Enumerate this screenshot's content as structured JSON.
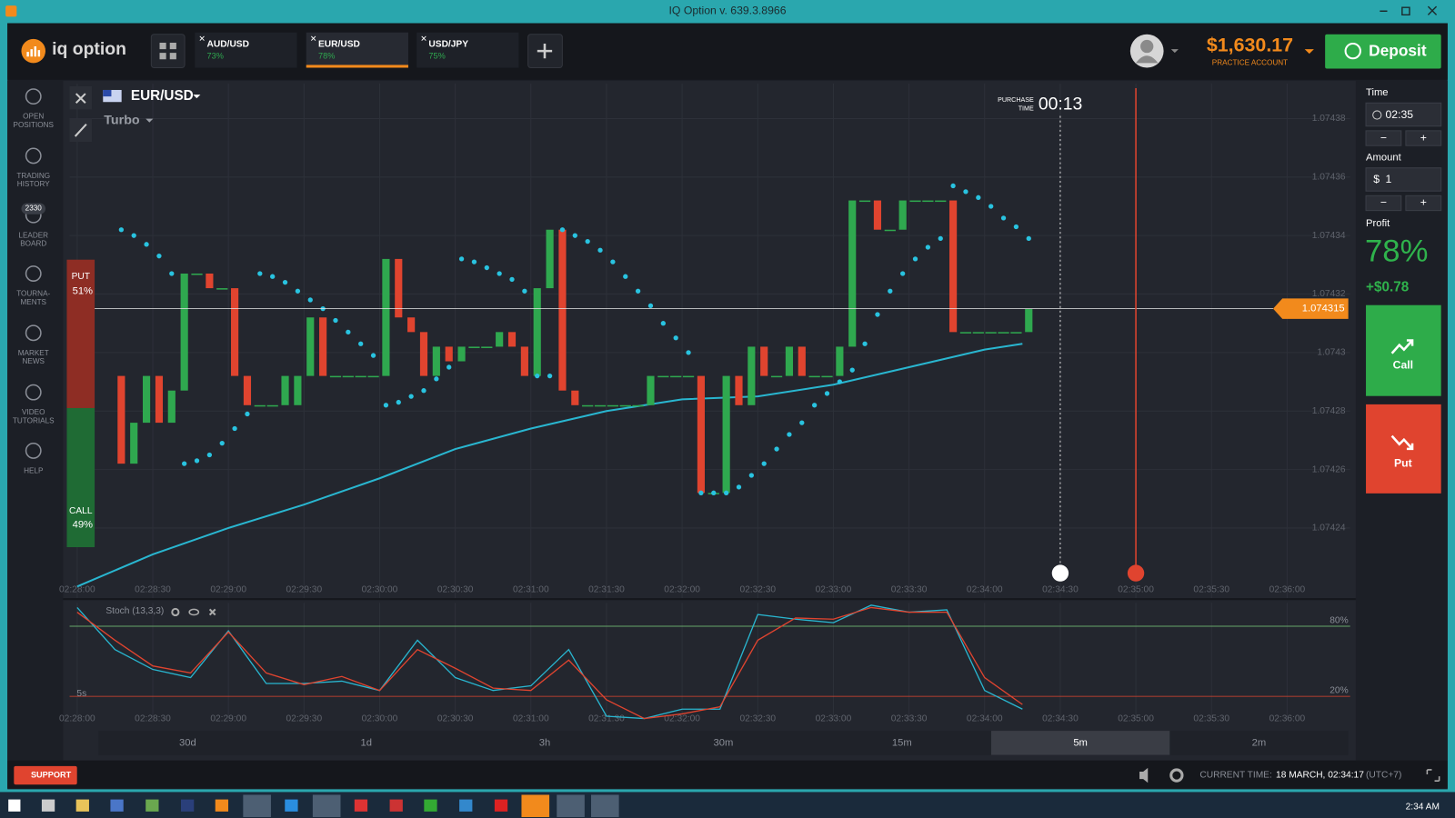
{
  "window": {
    "title": "IQ Option v. 639.3.8966"
  },
  "header": {
    "logo": "iq option",
    "tabs": [
      {
        "pair": "AUD/USD",
        "profit": "73%"
      },
      {
        "pair": "EUR/USD",
        "profit": "78%"
      },
      {
        "pair": "USD/JPY",
        "profit": "75%"
      }
    ],
    "balance": "$1,630.17",
    "account": "PRACTICE ACCOUNT",
    "deposit": "Deposit"
  },
  "sidebar": {
    "items": [
      [
        "OPEN",
        "POSITIONS"
      ],
      [
        "TRADING",
        "HISTORY"
      ],
      [
        "LEADER",
        "BOARD"
      ],
      [
        "TOURNA-",
        "MENTS"
      ],
      [
        "MARKET",
        "NEWS"
      ],
      [
        "VIDEO",
        "TUTORIALS"
      ],
      [
        "HELP"
      ]
    ],
    "badge": "2330"
  },
  "asset": {
    "pair": "EUR/USD",
    "mode": "Turbo",
    "purchase_label": [
      "PURCHASE",
      "TIME"
    ],
    "timer": "00:13"
  },
  "sentiment": {
    "put": "PUT",
    "put_pct": "51%",
    "call": "CALL",
    "call_pct": "49%"
  },
  "trade_panel": {
    "time_label": "Time",
    "time": "02:35",
    "minus": "−",
    "plus": "+",
    "amount_label": "Amount",
    "currency": "$",
    "amount": "1",
    "profit_label": "Profit",
    "profit_pct": "78%",
    "profit": "+$0.78",
    "call": "Call",
    "put": "Put"
  },
  "timeframes": {
    "items": [
      "30d",
      "1d",
      "3h",
      "30m",
      "15m",
      "5m",
      "2m"
    ],
    "selected": "5m",
    "interval": "5s"
  },
  "footer": {
    "support": "SUPPORT",
    "time_label": "CURRENT TIME:",
    "time": "18 MARCH, 02:34:17",
    "zone": "(UTC+7)"
  },
  "taskbar": {
    "clock": "2:34 AM"
  },
  "chart_data": [
    {
      "type": "candlestick",
      "xlim": [
        "02:27:57",
        "02:36:25"
      ],
      "xticks": [
        "02:28:00",
        "02:28:30",
        "02:29:00",
        "02:29:30",
        "02:30:00",
        "02:30:30",
        "02:31:00",
        "02:31:30",
        "02:32:00",
        "02:32:30",
        "02:33:00",
        "02:33:30",
        "02:34:00",
        "02:34:30",
        "02:35:00",
        "02:35:30",
        "02:36:00"
      ],
      "ylim": [
        1.074216,
        1.074392
      ],
      "yticks": [
        1.07424,
        1.07426,
        1.07428,
        1.0743,
        1.07432,
        1.07434,
        1.07436,
        1.07438
      ],
      "grid": true,
      "up_color": "#2fa84f",
      "down_color": "#e0442f",
      "x": [
        "02:28:15",
        "02:28:20",
        "02:28:25",
        "02:28:30",
        "02:28:35",
        "02:28:40",
        "02:28:45",
        "02:28:50",
        "02:28:55",
        "02:29:00",
        "02:29:05",
        "02:29:10",
        "02:29:15",
        "02:29:20",
        "02:29:25",
        "02:29:30",
        "02:29:35",
        "02:29:40",
        "02:29:45",
        "02:29:50",
        "02:29:55",
        "02:30:00",
        "02:30:05",
        "02:30:10",
        "02:30:15",
        "02:30:20",
        "02:30:25",
        "02:30:30",
        "02:30:35",
        "02:30:40",
        "02:30:45",
        "02:30:50",
        "02:30:55",
        "02:31:00",
        "02:31:05",
        "02:31:10",
        "02:31:15",
        "02:31:20",
        "02:31:25",
        "02:31:30",
        "02:31:35",
        "02:31:40",
        "02:31:45",
        "02:31:50",
        "02:31:55",
        "02:32:00",
        "02:32:05",
        "02:32:10",
        "02:32:15",
        "02:32:20",
        "02:32:25",
        "02:32:30",
        "02:32:35",
        "02:32:40",
        "02:32:45",
        "02:32:50",
        "02:32:55",
        "02:33:00",
        "02:33:05",
        "02:33:10",
        "02:33:15",
        "02:33:20",
        "02:33:25",
        "02:33:30",
        "02:33:35",
        "02:33:40",
        "02:33:45",
        "02:33:50",
        "02:33:55",
        "02:34:00",
        "02:34:05",
        "02:34:10",
        "02:34:15"
      ],
      "open": [
        1.074292,
        1.074262,
        1.074276,
        1.074292,
        1.074276,
        1.074287,
        1.074327,
        1.074327,
        1.074322,
        1.074322,
        1.074292,
        1.074282,
        1.074282,
        1.074282,
        1.074282,
        1.074292,
        1.074312,
        1.074292,
        1.074292,
        1.074292,
        1.074292,
        1.074292,
        1.074332,
        1.074312,
        1.074307,
        1.074292,
        1.074302,
        1.074297,
        1.074302,
        1.074302,
        1.074302,
        1.074307,
        1.074302,
        1.074292,
        1.074322,
        1.074342,
        1.074287,
        1.074282,
        1.074282,
        1.074282,
        1.074282,
        1.074282,
        1.074282,
        1.074292,
        1.074292,
        1.074292,
        1.074292,
        1.074252,
        1.074252,
        1.074292,
        1.074282,
        1.074302,
        1.074292,
        1.074292,
        1.074302,
        1.074292,
        1.074292,
        1.074292,
        1.074302,
        1.074352,
        1.074352,
        1.074342,
        1.074342,
        1.074352,
        1.074352,
        1.074352,
        1.074352,
        1.074307,
        1.074307,
        1.074307,
        1.074307,
        1.074307,
        1.074307
      ],
      "close": [
        1.074262,
        1.074276,
        1.074292,
        1.074276,
        1.074287,
        1.074327,
        1.074327,
        1.074322,
        1.074322,
        1.074292,
        1.074282,
        1.074282,
        1.074282,
        1.074292,
        1.074292,
        1.074312,
        1.074292,
        1.074292,
        1.074292,
        1.074292,
        1.074292,
        1.074332,
        1.074312,
        1.074307,
        1.074292,
        1.074302,
        1.074297,
        1.074302,
        1.074302,
        1.074302,
        1.074307,
        1.074302,
        1.074292,
        1.074322,
        1.074342,
        1.074287,
        1.074282,
        1.074282,
        1.074282,
        1.074282,
        1.074282,
        1.074282,
        1.074292,
        1.074292,
        1.074292,
        1.074292,
        1.074252,
        1.074252,
        1.074292,
        1.074282,
        1.074302,
        1.074292,
        1.074292,
        1.074302,
        1.074292,
        1.074292,
        1.074292,
        1.074302,
        1.074352,
        1.074352,
        1.074342,
        1.074342,
        1.074352,
        1.074352,
        1.074352,
        1.074352,
        1.074307,
        1.074307,
        1.074307,
        1.074307,
        1.074307,
        1.074307,
        1.074315
      ],
      "sar": {
        "color": "#29c3e0",
        "values": [
          1.074342,
          1.07434,
          1.074337,
          1.074333,
          1.074327,
          1.074262,
          1.074263,
          1.074265,
          1.074269,
          1.074274,
          1.074279,
          1.074327,
          1.074326,
          1.074324,
          1.074321,
          1.074318,
          1.074315,
          1.074311,
          1.074307,
          1.074303,
          1.074299,
          1.074282,
          1.074283,
          1.074285,
          1.074287,
          1.074291,
          1.074295,
          1.074332,
          1.074331,
          1.074329,
          1.074327,
          1.074325,
          1.074321,
          1.074292,
          1.074292,
          1.074342,
          1.07434,
          1.074338,
          1.074335,
          1.074331,
          1.074326,
          1.074321,
          1.074316,
          1.07431,
          1.074305,
          1.0743,
          1.074252,
          1.074252,
          1.074252,
          1.074254,
          1.074258,
          1.074262,
          1.074267,
          1.074272,
          1.074276,
          1.074282,
          1.074286,
          1.07429,
          1.074294,
          1.074303,
          1.074313,
          1.074321,
          1.074327,
          1.074332,
          1.074336,
          1.074339,
          1.074357,
          1.074355,
          1.074353,
          1.07435,
          1.074346,
          1.074343,
          1.074339
        ]
      },
      "moving_average": {
        "color": "#29b6d0",
        "x": [
          "02:28:00",
          "02:28:30",
          "02:29:00",
          "02:29:30",
          "02:30:00",
          "02:30:30",
          "02:31:00",
          "02:31:30",
          "02:32:00",
          "02:32:30",
          "02:33:00",
          "02:33:30",
          "02:34:00",
          "02:34:15"
        ],
        "values": [
          1.07422,
          1.074231,
          1.07424,
          1.074248,
          1.074257,
          1.074267,
          1.074274,
          1.07428,
          1.074284,
          1.074285,
          1.074289,
          1.074295,
          1.074301,
          1.074303
        ]
      },
      "current_price": {
        "value": 1.074315,
        "label": "1.074315"
      },
      "markers": {
        "purchase": "02:34:30",
        "expiration": "02:35:00"
      }
    },
    {
      "type": "line",
      "title": "Stoch (13,3,3)",
      "xlim": [
        "02:27:57",
        "02:36:25"
      ],
      "xticks": [
        "02:28:00",
        "02:28:30",
        "02:29:00",
        "02:29:30",
        "02:30:00",
        "02:30:30",
        "02:31:00",
        "02:31:30",
        "02:32:00",
        "02:32:30",
        "02:33:00",
        "02:33:30",
        "02:34:00",
        "02:34:30",
        "02:35:00",
        "02:35:30",
        "02:36:00"
      ],
      "ylim": [
        0,
        100
      ],
      "yticks": [
        {
          "value": 80,
          "label": "80%"
        },
        {
          "value": 20,
          "label": "20%"
        }
      ],
      "ytick_colors": [
        "#7ed07e",
        "#e0442f"
      ],
      "x": [
        "02:28:00",
        "02:28:15",
        "02:28:30",
        "02:28:45",
        "02:29:00",
        "02:29:15",
        "02:29:30",
        "02:29:45",
        "02:30:00",
        "02:30:15",
        "02:30:30",
        "02:30:45",
        "02:31:00",
        "02:31:15",
        "02:31:30",
        "02:31:45",
        "02:32:00",
        "02:32:15",
        "02:32:30",
        "02:32:45",
        "02:33:00",
        "02:33:15",
        "02:33:30",
        "02:33:45",
        "02:34:00",
        "02:34:15"
      ],
      "series": [
        {
          "color": "#29b6d0",
          "values": [
            96,
            60,
            43,
            36,
            76,
            31,
            31,
            33,
            25,
            68,
            36,
            25,
            29,
            60,
            3,
            1,
            9,
            9,
            90,
            86,
            83,
            98,
            92,
            94,
            25,
            9
          ]
        },
        {
          "color": "#e0442f",
          "values": [
            92,
            68,
            46,
            40,
            75,
            40,
            30,
            37,
            25,
            60,
            44,
            27,
            25,
            51,
            17,
            1,
            5,
            11,
            68,
            87,
            86,
            96,
            92,
            92,
            36,
            13
          ]
        }
      ]
    }
  ]
}
